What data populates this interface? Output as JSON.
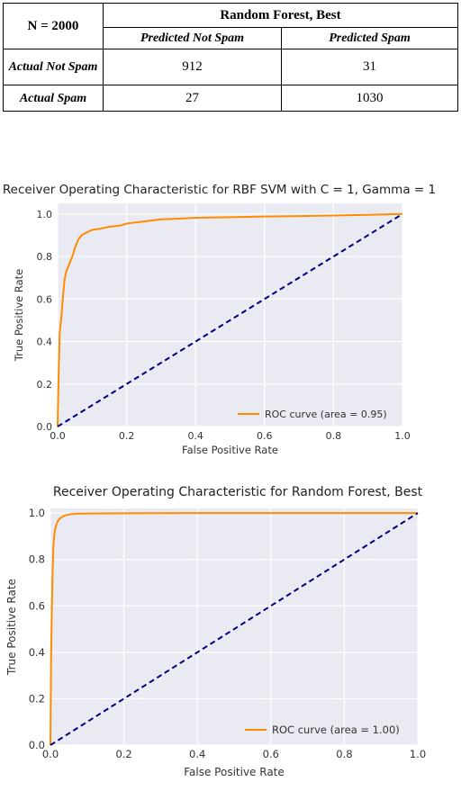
{
  "table": {
    "n_label": "N = 2000",
    "model_header": "Random Forest, Best",
    "col_headers": [
      "Predicted Not Spam",
      "Predicted Spam"
    ],
    "rows": [
      {
        "label": "Actual Not Spam",
        "values": [
          "912",
          "31"
        ]
      },
      {
        "label": "Actual Spam",
        "values": [
          "27",
          "1030"
        ]
      }
    ]
  },
  "chart_data": [
    {
      "type": "line",
      "title": "Receiver Operating Characteristic for RBF SVM with C = 1, Gamma = 1",
      "xlabel": "False Positive Rate",
      "ylabel": "True Positive Rate",
      "xlim": [
        0,
        1
      ],
      "ylim": [
        0,
        1.05
      ],
      "xticks": [
        "0.0",
        "0.2",
        "0.4",
        "0.6",
        "0.8",
        "1.0"
      ],
      "yticks": [
        "0.0",
        "0.2",
        "0.4",
        "0.6",
        "0.8",
        "1.0"
      ],
      "grid": true,
      "legend_position": "lower-right",
      "series": [
        {
          "name": "ROC curve (area = 0.95)",
          "color": "#ff8c00",
          "style": "solid",
          "x": [
            0,
            0.003,
            0.006,
            0.01,
            0.013,
            0.016,
            0.02,
            0.025,
            0.03,
            0.035,
            0.04,
            0.045,
            0.05,
            0.055,
            0.06,
            0.07,
            0.08,
            0.1,
            0.12,
            0.15,
            0.18,
            0.2,
            0.25,
            0.3,
            0.35,
            0.4,
            0.5,
            0.6,
            0.7,
            0.8,
            0.9,
            1.0
          ],
          "y": [
            0,
            0.25,
            0.44,
            0.5,
            0.56,
            0.62,
            0.69,
            0.73,
            0.75,
            0.77,
            0.79,
            0.81,
            0.84,
            0.86,
            0.88,
            0.9,
            0.91,
            0.925,
            0.93,
            0.94,
            0.945,
            0.955,
            0.965,
            0.975,
            0.978,
            0.982,
            0.985,
            0.988,
            0.99,
            0.993,
            0.996,
            1.0
          ]
        },
        {
          "name": "",
          "color": "#000080",
          "style": "dashed",
          "x": [
            0,
            1
          ],
          "y": [
            0,
            1
          ]
        }
      ]
    },
    {
      "type": "line",
      "title": "Receiver Operating Characteristic for Random Forest, Best",
      "xlabel": "False Positive Rate",
      "ylabel": "True Positive Rate",
      "xlim": [
        0,
        1
      ],
      "ylim": [
        0,
        1.02
      ],
      "xticks": [
        "0.0",
        "0.2",
        "0.4",
        "0.6",
        "0.8",
        "1.0"
      ],
      "yticks": [
        "0.0",
        "0.2",
        "0.4",
        "0.6",
        "0.8",
        "1.0"
      ],
      "grid": true,
      "legend_position": "lower-right",
      "series": [
        {
          "name": "ROC curve (area = 1.00)",
          "color": "#ff8c00",
          "style": "solid",
          "x": [
            0,
            0.002,
            0.004,
            0.006,
            0.008,
            0.01,
            0.013,
            0.016,
            0.02,
            0.025,
            0.03,
            0.04,
            0.05,
            0.07,
            0.1,
            0.2,
            0.4,
            0.6,
            0.8,
            1.0
          ],
          "y": [
            0,
            0.4,
            0.6,
            0.75,
            0.85,
            0.9,
            0.93,
            0.95,
            0.965,
            0.975,
            0.982,
            0.99,
            0.994,
            0.997,
            0.998,
            0.999,
            1.0,
            1.0,
            1.0,
            1.0
          ]
        },
        {
          "name": "",
          "color": "#000080",
          "style": "dashed",
          "x": [
            0,
            1
          ],
          "y": [
            0,
            1
          ]
        }
      ]
    }
  ]
}
